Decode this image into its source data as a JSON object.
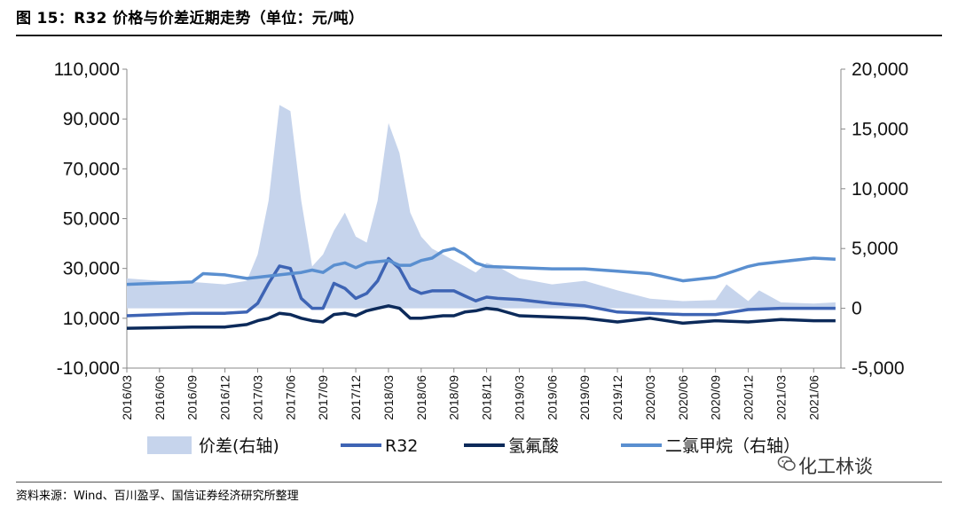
{
  "title": "图 15：R32 价格与价差近期走势（单位：元/吨）",
  "source": "资料来源：Wind、百川盈孚、国信证券经济研究所整理",
  "watermark": "化工林谈",
  "colors": {
    "spread": "#c6d4ec",
    "r32": "#3e64b4",
    "hf": "#0c2a5a",
    "dcm": "#5a8fd0"
  },
  "chart_data": {
    "type": "line",
    "x_ticks": [
      "2016/03",
      "2016/06",
      "2016/09",
      "2016/12",
      "2017/03",
      "2017/06",
      "2017/09",
      "2017/12",
      "2018/03",
      "2018/06",
      "2018/09",
      "2018/12",
      "2019/03",
      "2019/06",
      "2019/09",
      "2019/12",
      "2020/03",
      "2020/06",
      "2020/09",
      "2020/12",
      "2021/03",
      "2021/06"
    ],
    "left_ticks": [
      "110,000",
      "90,000",
      "70,000",
      "50,000",
      "30,000",
      "10,000",
      "-10,000"
    ],
    "right_ticks": [
      "20,000",
      "15,000",
      "10,000",
      "5,000",
      "0",
      "-5,000"
    ],
    "ylim_left": [
      -10000,
      110000
    ],
    "ylim_right": [
      -5000,
      20000
    ],
    "series": [
      {
        "name": "价差(右轴)",
        "axis": "right",
        "style": "area",
        "x": [
          "2016/03",
          "2016/06",
          "2016/09",
          "2016/12",
          "2017/02",
          "2017/03",
          "2017/04",
          "2017/05",
          "2017/06",
          "2017/07",
          "2017/08",
          "2017/09",
          "2017/10",
          "2017/11",
          "2017/12",
          "2018/01",
          "2018/02",
          "2018/03",
          "2018/04",
          "2018/05",
          "2018/06",
          "2018/07",
          "2018/08",
          "2018/09",
          "2018/10",
          "2018/11",
          "2018/12",
          "2019/01",
          "2019/03",
          "2019/06",
          "2019/09",
          "2019/12",
          "2020/03",
          "2020/06",
          "2020/09",
          "2020/10",
          "2020/12",
          "2021/01",
          "2021/03",
          "2021/06",
          "2021/08"
        ],
        "values": [
          2500,
          2300,
          2200,
          2000,
          2300,
          4500,
          9000,
          17000,
          16500,
          9000,
          3500,
          4500,
          6500,
          8000,
          6000,
          5500,
          9000,
          15500,
          13000,
          8000,
          6000,
          5000,
          4500,
          4000,
          3500,
          3000,
          3800,
          3500,
          2500,
          2000,
          2300,
          1500,
          800,
          600,
          700,
          2000,
          600,
          1500,
          500,
          400,
          500
        ]
      },
      {
        "name": "R32",
        "axis": "left",
        "x": [
          "2016/03",
          "2016/06",
          "2016/09",
          "2016/12",
          "2017/02",
          "2017/03",
          "2017/04",
          "2017/05",
          "2017/06",
          "2017/07",
          "2017/08",
          "2017/09",
          "2017/10",
          "2017/11",
          "2017/12",
          "2018/01",
          "2018/02",
          "2018/03",
          "2018/04",
          "2018/05",
          "2018/06",
          "2018/07",
          "2018/08",
          "2018/09",
          "2018/10",
          "2018/11",
          "2018/12",
          "2019/01",
          "2019/03",
          "2019/06",
          "2019/09",
          "2019/12",
          "2020/03",
          "2020/06",
          "2020/09",
          "2020/12",
          "2021/03",
          "2021/06",
          "2021/08"
        ],
        "values": [
          11000,
          11500,
          12000,
          12000,
          12500,
          16000,
          24000,
          31000,
          30000,
          18000,
          14000,
          14000,
          24000,
          22000,
          18000,
          20000,
          25000,
          34000,
          30000,
          22000,
          20000,
          21000,
          21000,
          21000,
          19000,
          17000,
          18500,
          18000,
          17500,
          16000,
          15000,
          12500,
          12000,
          11500,
          11500,
          13500,
          14000,
          14000,
          14000
        ]
      },
      {
        "name": "氢氟酸",
        "axis": "left",
        "x": [
          "2016/03",
          "2016/06",
          "2016/09",
          "2016/12",
          "2017/02",
          "2017/03",
          "2017/04",
          "2017/05",
          "2017/06",
          "2017/07",
          "2017/08",
          "2017/09",
          "2017/10",
          "2017/11",
          "2017/12",
          "2018/01",
          "2018/02",
          "2018/03",
          "2018/04",
          "2018/05",
          "2018/06",
          "2018/07",
          "2018/08",
          "2018/09",
          "2018/10",
          "2018/11",
          "2018/12",
          "2019/01",
          "2019/03",
          "2019/06",
          "2019/09",
          "2019/12",
          "2020/03",
          "2020/06",
          "2020/09",
          "2020/12",
          "2021/03",
          "2021/06",
          "2021/08"
        ],
        "values": [
          6000,
          6200,
          6500,
          6500,
          7500,
          9000,
          10000,
          12000,
          11500,
          10000,
          9000,
          8500,
          11500,
          12000,
          11000,
          13000,
          14000,
          15000,
          14000,
          10000,
          10000,
          10500,
          11000,
          11000,
          12500,
          13000,
          14000,
          13500,
          11000,
          10500,
          10000,
          8500,
          10000,
          8000,
          9000,
          8500,
          9500,
          9000,
          9000
        ]
      },
      {
        "name": "二氯甲烷（右轴）",
        "axis": "right",
        "x": [
          "2016/03",
          "2016/06",
          "2016/09",
          "2016/10",
          "2016/12",
          "2017/02",
          "2017/03",
          "2017/04",
          "2017/05",
          "2017/06",
          "2017/07",
          "2017/08",
          "2017/09",
          "2017/10",
          "2017/11",
          "2017/12",
          "2018/01",
          "2018/02",
          "2018/03",
          "2018/04",
          "2018/05",
          "2018/06",
          "2018/07",
          "2018/08",
          "2018/09",
          "2018/10",
          "2018/11",
          "2018/12",
          "2019/03",
          "2019/06",
          "2019/09",
          "2019/12",
          "2020/03",
          "2020/06",
          "2020/09",
          "2020/12",
          "2021/01",
          "2021/03",
          "2021/06",
          "2021/08"
        ],
        "values": [
          2000,
          2100,
          2200,
          2900,
          2800,
          2500,
          2600,
          2700,
          2800,
          2900,
          3000,
          3200,
          3000,
          3600,
          3800,
          3400,
          3800,
          3900,
          4000,
          3600,
          3600,
          4000,
          4200,
          4800,
          5000,
          4500,
          3800,
          3500,
          3400,
          3300,
          3300,
          3100,
          2900,
          2300,
          2600,
          3500,
          3700,
          3900,
          4200,
          4100
        ]
      }
    ],
    "legend": {
      "position": "bottom",
      "items": [
        "价差(右轴)",
        "R32",
        "氢氟酸",
        "二氯甲烷（右轴）"
      ]
    }
  }
}
